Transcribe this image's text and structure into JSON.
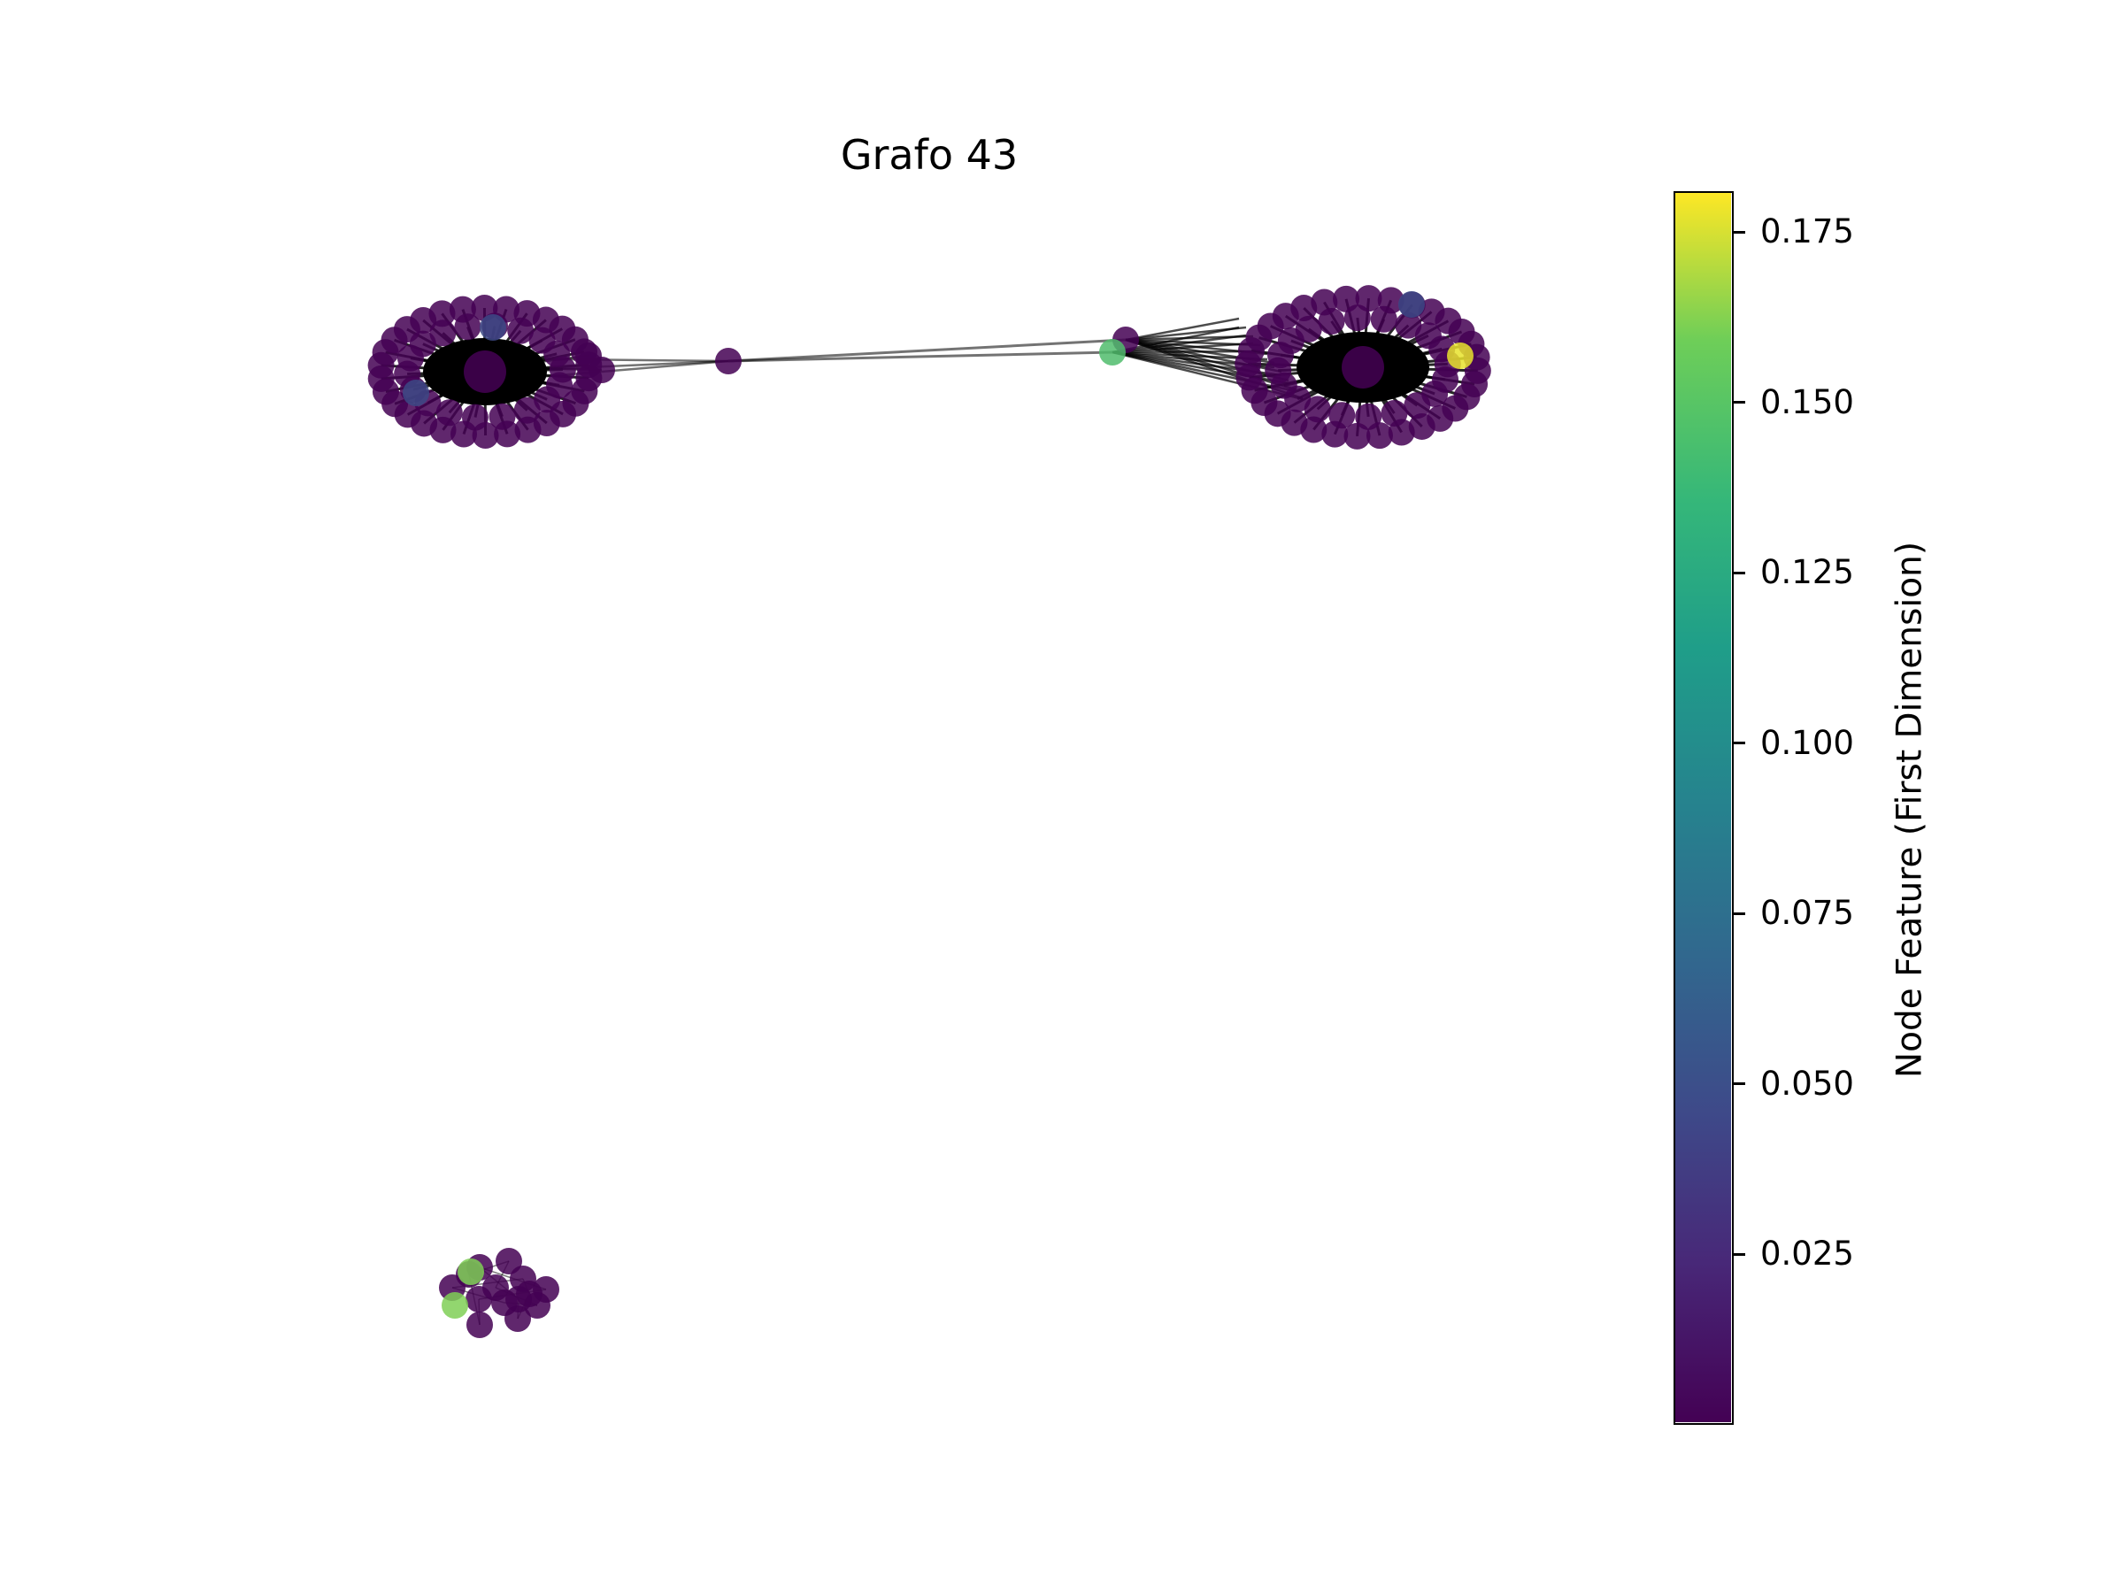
{
  "title": "Grafo 43",
  "colorbar": {
    "label": "Node Feature (First Dimension)",
    "ticks": [
      "0.025",
      "0.050",
      "0.075",
      "0.100",
      "0.125",
      "0.150",
      "0.175"
    ],
    "tick_values": [
      0.025,
      0.05,
      0.075,
      0.1,
      0.125,
      0.15,
      0.175
    ],
    "range": [
      0.0,
      0.181
    ],
    "colormap": "viridis",
    "colors": [
      "#440154",
      "#3b528b",
      "#21918c",
      "#5ec962",
      "#fde725"
    ]
  },
  "graph": {
    "components": 3,
    "node_color_default": "#440154",
    "edge_color": "#000000",
    "highlight_nodes": [
      {
        "cluster": "left",
        "value": 0.04
      },
      {
        "cluster": "left",
        "value": 0.04
      },
      {
        "cluster": "bridge",
        "value": 0.125
      },
      {
        "cluster": "right",
        "value": 0.04
      },
      {
        "cluster": "right",
        "value": 0.175
      },
      {
        "cluster": "small",
        "value": 0.145
      },
      {
        "cluster": "small",
        "value": 0.145
      }
    ]
  }
}
